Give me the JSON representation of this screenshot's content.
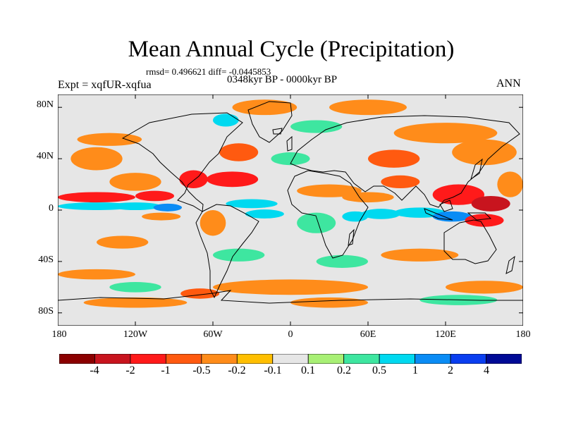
{
  "title": "Mean Annual Cycle (Precipitation)",
  "stats": "rmsd= 0.496621 diff= -0.0445853",
  "period": "0348kyr BP - 0000kyr BP",
  "experiment": "Expt = xqfUR-xqfua",
  "season": "ANN",
  "lat_labels": [
    "80N",
    "40N",
    "0",
    "40S",
    "80S"
  ],
  "lat_values": [
    80,
    40,
    0,
    -40,
    -80
  ],
  "lon_labels": [
    "180",
    "120W",
    "60W",
    "0",
    "60E",
    "120E",
    "180"
  ],
  "lon_values": [
    -180,
    -120,
    -60,
    0,
    60,
    120,
    180
  ],
  "colorbar": {
    "labels": [
      "-4",
      "-2",
      "-1",
      "-0.5",
      "-0.2",
      "-0.1",
      "0.1",
      "0.2",
      "0.5",
      "1",
      "2",
      "4"
    ],
    "colors": [
      "#8b0000",
      "#c8141e",
      "#ff1a1a",
      "#ff5a10",
      "#ff8c1a",
      "#ffbf00",
      "#e6e6e6",
      "#a8f075",
      "#3ee6a0",
      "#00d9f0",
      "#0a8cf5",
      "#0a3ef0",
      "#000a96"
    ]
  },
  "chart_data": {
    "type": "heatmap",
    "title": "Mean Annual Cycle (Precipitation)",
    "variable": "Precipitation",
    "x_range": [
      -180,
      180
    ],
    "y_range": [
      -90,
      90
    ],
    "levels": [
      -4,
      -2,
      -1,
      -0.5,
      -0.2,
      -0.1,
      0.1,
      0.2,
      0.5,
      1,
      2,
      4
    ],
    "regions": [
      {
        "lon": -150,
        "lat": 3,
        "w": 60,
        "h": 6,
        "v": 0.6
      },
      {
        "lon": -120,
        "lat": 3,
        "w": 40,
        "h": 6,
        "v": 0.8
      },
      {
        "lon": -95,
        "lat": 2,
        "w": 22,
        "h": 6,
        "v": 1.5
      },
      {
        "lon": -150,
        "lat": 10,
        "w": 60,
        "h": 8,
        "v": -1.2
      },
      {
        "lon": -105,
        "lat": 11,
        "w": 30,
        "h": 8,
        "v": -1.5
      },
      {
        "lon": -120,
        "lat": 22,
        "w": 40,
        "h": 14,
        "v": -0.3
      },
      {
        "lon": -150,
        "lat": 40,
        "w": 40,
        "h": 18,
        "v": -0.5
      },
      {
        "lon": -75,
        "lat": 24,
        "w": 22,
        "h": 14,
        "v": -1.2
      },
      {
        "lon": -45,
        "lat": 24,
        "w": 40,
        "h": 12,
        "v": -1.3
      },
      {
        "lon": -40,
        "lat": 45,
        "w": 30,
        "h": 14,
        "v": -0.6
      },
      {
        "lon": -30,
        "lat": 5,
        "w": 40,
        "h": 7,
        "v": 0.8
      },
      {
        "lon": -20,
        "lat": -3,
        "w": 30,
        "h": 7,
        "v": 0.5
      },
      {
        "lon": -60,
        "lat": -10,
        "w": 20,
        "h": 20,
        "v": -0.4
      },
      {
        "lon": -140,
        "lat": 55,
        "w": 50,
        "h": 10,
        "v": -0.5
      },
      {
        "lon": -20,
        "lat": 80,
        "w": 50,
        "h": 12,
        "v": -0.3
      },
      {
        "lon": -50,
        "lat": 70,
        "w": 20,
        "h": 10,
        "v": 0.5
      },
      {
        "lon": 60,
        "lat": 80,
        "w": 60,
        "h": 12,
        "v": -0.5
      },
      {
        "lon": 20,
        "lat": 65,
        "w": 40,
        "h": 10,
        "v": 0.4
      },
      {
        "lon": 120,
        "lat": 60,
        "w": 80,
        "h": 16,
        "v": -0.4
      },
      {
        "lon": 80,
        "lat": 40,
        "w": 40,
        "h": 14,
        "v": -0.6
      },
      {
        "lon": 150,
        "lat": 45,
        "w": 50,
        "h": 20,
        "v": -0.5
      },
      {
        "lon": 30,
        "lat": 15,
        "w": 50,
        "h": 10,
        "v": -0.4
      },
      {
        "lon": 60,
        "lat": 10,
        "w": 40,
        "h": 8,
        "v": -0.5
      },
      {
        "lon": 85,
        "lat": 22,
        "w": 30,
        "h": 10,
        "v": -1.0
      },
      {
        "lon": 130,
        "lat": 12,
        "w": 40,
        "h": 16,
        "v": -1.8
      },
      {
        "lon": 155,
        "lat": 5,
        "w": 30,
        "h": 12,
        "v": -2.5
      },
      {
        "lon": 100,
        "lat": -2,
        "w": 40,
        "h": 8,
        "v": 0.8
      },
      {
        "lon": 125,
        "lat": -5,
        "w": 30,
        "h": 8,
        "v": 1.8
      },
      {
        "lon": 150,
        "lat": -8,
        "w": 30,
        "h": 10,
        "v": -1.5
      },
      {
        "lon": 70,
        "lat": -3,
        "w": 30,
        "h": 8,
        "v": 0.6
      },
      {
        "lon": 50,
        "lat": -5,
        "w": 20,
        "h": 8,
        "v": 0.8
      },
      {
        "lon": 20,
        "lat": -10,
        "w": 30,
        "h": 16,
        "v": 0.4
      },
      {
        "lon": 170,
        "lat": 20,
        "w": 20,
        "h": 20,
        "v": -0.3
      },
      {
        "lon": 100,
        "lat": -35,
        "w": 60,
        "h": 10,
        "v": -0.5
      },
      {
        "lon": -130,
        "lat": -25,
        "w": 40,
        "h": 10,
        "v": -0.3
      },
      {
        "lon": -100,
        "lat": -5,
        "w": 30,
        "h": 6,
        "v": -0.5
      },
      {
        "lon": -40,
        "lat": -35,
        "w": 40,
        "h": 10,
        "v": 0.4
      },
      {
        "lon": 40,
        "lat": -40,
        "w": 40,
        "h": 10,
        "v": 0.3
      },
      {
        "lon": -150,
        "lat": -50,
        "w": 60,
        "h": 8,
        "v": -0.4
      },
      {
        "lon": 0,
        "lat": -60,
        "w": 120,
        "h": 12,
        "v": -0.4
      },
      {
        "lon": 150,
        "lat": -60,
        "w": 60,
        "h": 10,
        "v": -0.4
      },
      {
        "lon": -120,
        "lat": -60,
        "w": 40,
        "h": 8,
        "v": 0.3
      },
      {
        "lon": -120,
        "lat": -72,
        "w": 80,
        "h": 8,
        "v": -0.3
      },
      {
        "lon": 30,
        "lat": -72,
        "w": 60,
        "h": 8,
        "v": -0.3
      },
      {
        "lon": 130,
        "lat": -70,
        "w": 60,
        "h": 8,
        "v": 0.3
      },
      {
        "lon": -70,
        "lat": -65,
        "w": 30,
        "h": 8,
        "v": -0.6
      },
      {
        "lon": 0,
        "lat": 40,
        "w": 30,
        "h": 10,
        "v": 0.3
      }
    ]
  }
}
